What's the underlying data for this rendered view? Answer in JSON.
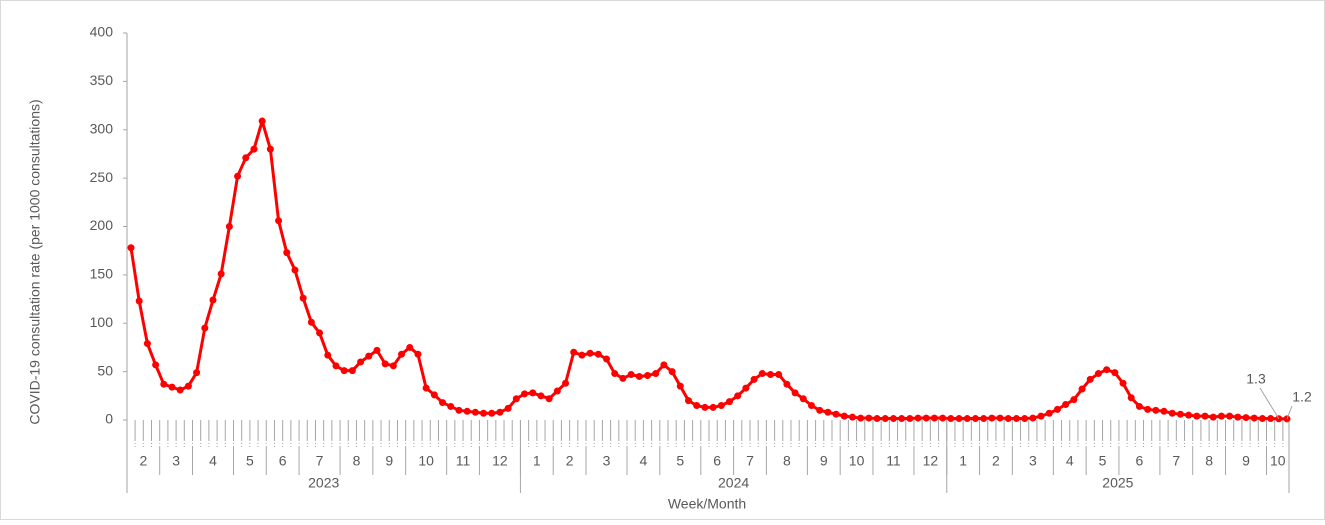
{
  "chart_data": {
    "type": "line",
    "y_label": "COVID-19 consultation rate (per 1000 consultations)",
    "x_label": "Week/Month",
    "color": "#ff0000",
    "ylim": [
      0,
      400
    ],
    "yticks": [
      0,
      50,
      100,
      150,
      200,
      250,
      300,
      350,
      400
    ],
    "categories": [
      "2",
      "2",
      "2",
      "2",
      "3",
      "3",
      "3",
      "3",
      "4",
      "4",
      "4",
      "4",
      "4",
      "5",
      "5",
      "5",
      "5",
      "6",
      "6",
      "6",
      "6",
      "7",
      "7",
      "7",
      "7",
      "7",
      "8",
      "8",
      "8",
      "8",
      "9",
      "9",
      "9",
      "9",
      "10",
      "10",
      "10",
      "10",
      "10",
      "11",
      "11",
      "11",
      "11",
      "12",
      "12",
      "12",
      "12",
      "12",
      "1",
      "1",
      "1",
      "1",
      "2",
      "2",
      "2",
      "2",
      "3",
      "3",
      "3",
      "3",
      "3",
      "4",
      "4",
      "4",
      "4",
      "5",
      "5",
      "5",
      "5",
      "5",
      "6",
      "6",
      "6",
      "6",
      "7",
      "7",
      "7",
      "7",
      "8",
      "8",
      "8",
      "8",
      "8",
      "9",
      "9",
      "9",
      "9",
      "10",
      "10",
      "10",
      "10",
      "11",
      "11",
      "11",
      "11",
      "11",
      "12",
      "12",
      "12",
      "12",
      "1",
      "1",
      "1",
      "1",
      "2",
      "2",
      "2",
      "2",
      "3",
      "3",
      "3",
      "3",
      "3",
      "4",
      "4",
      "4",
      "4",
      "5",
      "5",
      "5",
      "5",
      "6",
      "6",
      "6",
      "6",
      "6",
      "7",
      "7",
      "7",
      "7",
      "8",
      "8",
      "8",
      "8",
      "9",
      "9",
      "9",
      "9",
      "9",
      "10",
      "10",
      "10"
    ],
    "years": [
      "2023",
      "2023",
      "2023",
      "2023",
      "2023",
      "2023",
      "2023",
      "2023",
      "2023",
      "2023",
      "2023",
      "2023",
      "2023",
      "2023",
      "2023",
      "2023",
      "2023",
      "2023",
      "2023",
      "2023",
      "2023",
      "2023",
      "2023",
      "2023",
      "2023",
      "2023",
      "2023",
      "2023",
      "2023",
      "2023",
      "2023",
      "2023",
      "2023",
      "2023",
      "2023",
      "2023",
      "2023",
      "2023",
      "2023",
      "2023",
      "2023",
      "2023",
      "2023",
      "2023",
      "2023",
      "2023",
      "2023",
      "2023",
      "2024",
      "2024",
      "2024",
      "2024",
      "2024",
      "2024",
      "2024",
      "2024",
      "2024",
      "2024",
      "2024",
      "2024",
      "2024",
      "2024",
      "2024",
      "2024",
      "2024",
      "2024",
      "2024",
      "2024",
      "2024",
      "2024",
      "2024",
      "2024",
      "2024",
      "2024",
      "2024",
      "2024",
      "2024",
      "2024",
      "2024",
      "2024",
      "2024",
      "2024",
      "2024",
      "2024",
      "2024",
      "2024",
      "2024",
      "2024",
      "2024",
      "2024",
      "2024",
      "2024",
      "2024",
      "2024",
      "2024",
      "2024",
      "2024",
      "2024",
      "2024",
      "2024",
      "2025",
      "2025",
      "2025",
      "2025",
      "2025",
      "2025",
      "2025",
      "2025",
      "2025",
      "2025",
      "2025",
      "2025",
      "2025",
      "2025",
      "2025",
      "2025",
      "2025",
      "2025",
      "2025",
      "2025",
      "2025",
      "2025",
      "2025",
      "2025",
      "2025",
      "2025",
      "2025",
      "2025",
      "2025",
      "2025",
      "2025",
      "2025",
      "2025",
      "2025",
      "2025",
      "2025",
      "2025",
      "2025",
      "2025",
      "2025",
      "2025",
      "2025"
    ],
    "values": [
      178,
      123,
      79,
      57,
      37,
      34,
      31,
      35,
      49,
      95,
      124,
      151,
      200,
      252,
      271,
      280,
      309,
      280,
      206,
      173,
      155,
      126,
      101,
      90,
      67,
      56,
      51,
      51,
      60,
      66,
      72,
      58,
      56,
      68,
      75,
      68,
      33,
      26,
      18,
      14,
      10,
      9,
      8,
      7,
      7,
      8,
      12,
      22,
      27,
      28,
      25,
      22,
      30,
      38,
      70,
      67,
      69,
      68,
      63,
      48,
      43,
      47,
      45,
      46,
      48,
      57,
      50,
      35,
      20,
      15,
      13,
      13,
      15,
      19,
      25,
      33,
      42,
      48,
      47,
      47,
      37,
      28,
      22,
      15,
      10,
      8,
      6,
      4,
      3,
      2,
      2,
      1.5,
      1.5,
      1.5,
      1.5,
      1.5,
      2,
      2,
      2,
      2,
      1.5,
      1.5,
      1.5,
      1.5,
      1.5,
      2,
      2,
      1.5,
      1.5,
      1.5,
      2,
      4,
      7,
      11,
      16,
      21,
      32,
      42,
      48,
      52,
      49,
      38,
      23,
      14,
      11,
      10,
      9,
      7,
      6,
      5,
      4,
      4,
      3,
      4,
      4,
      3,
      2.5,
      2,
      1.5,
      1.5,
      1.3,
      1.2
    ]
  }
}
